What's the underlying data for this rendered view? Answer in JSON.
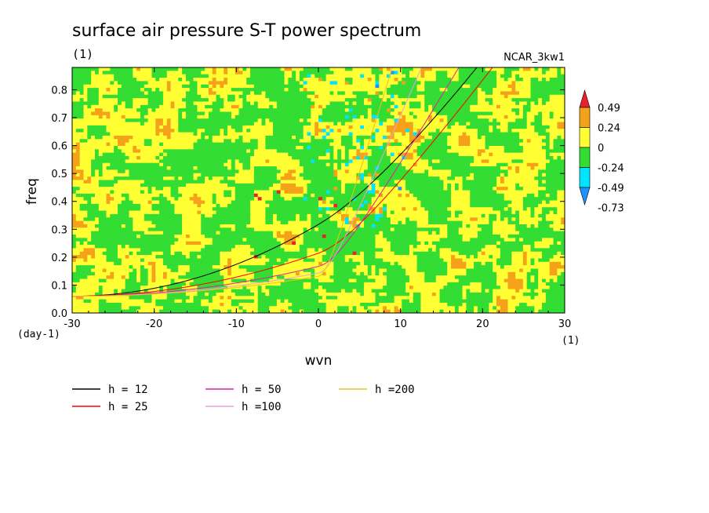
{
  "chart_data": {
    "type": "heatmap",
    "title": "surface air pressure S-T power spectrum",
    "subtitle_left": "(1)",
    "subtitle_right": "NCAR_3kw1",
    "xlabel": "wvn",
    "ylabel": "freq",
    "x_unit_label": "(1)",
    "y_unit_label": "(day-1)",
    "xlim": [
      -30,
      30
    ],
    "ylim": [
      0,
      0.88
    ],
    "x_ticks": [
      -30,
      -20,
      -10,
      0,
      10,
      20,
      30
    ],
    "x_tick_labels": [
      "-30",
      "-20",
      "-10",
      "0",
      "10",
      "20",
      "30"
    ],
    "y_ticks": [
      0,
      0.1,
      0.2,
      0.3,
      0.4,
      0.5,
      0.6,
      0.7,
      0.8
    ],
    "y_tick_labels": [
      "0.0",
      "0.1",
      "0.2",
      "0.3",
      "0.4",
      "0.5",
      "0.6",
      "0.7",
      "0.8"
    ],
    "colorbar": {
      "labels": [
        "0.49",
        "0.24",
        "0",
        "-0.24",
        "-0.49",
        "-0.73"
      ],
      "colors": [
        "#e8232b",
        "#f5a21b",
        "#ffff33",
        "#33dd33",
        "#00e5ff",
        "#1e90ff"
      ]
    },
    "field_summary": {
      "background_levels": [
        "0",
        "-0.24"
      ],
      "anomaly_wavenumber_range": [
        -2,
        12
      ]
    },
    "series": [
      {
        "name": "h = 12",
        "color": "#000000",
        "h": 12
      },
      {
        "name": "h = 25",
        "color": "#ff0000",
        "h": 25
      },
      {
        "name": "h = 50",
        "color": "#e020a0",
        "h": 50
      },
      {
        "name": "h =100",
        "color": "#e8a0e0",
        "h": 100
      },
      {
        "name": "h =200",
        "color": "#f0c020",
        "h": 200
      }
    ],
    "legend": {
      "placement": "bottom",
      "entries": [
        "h = 12",
        "h = 25",
        "h = 50",
        "h =100",
        "h =200"
      ]
    }
  }
}
